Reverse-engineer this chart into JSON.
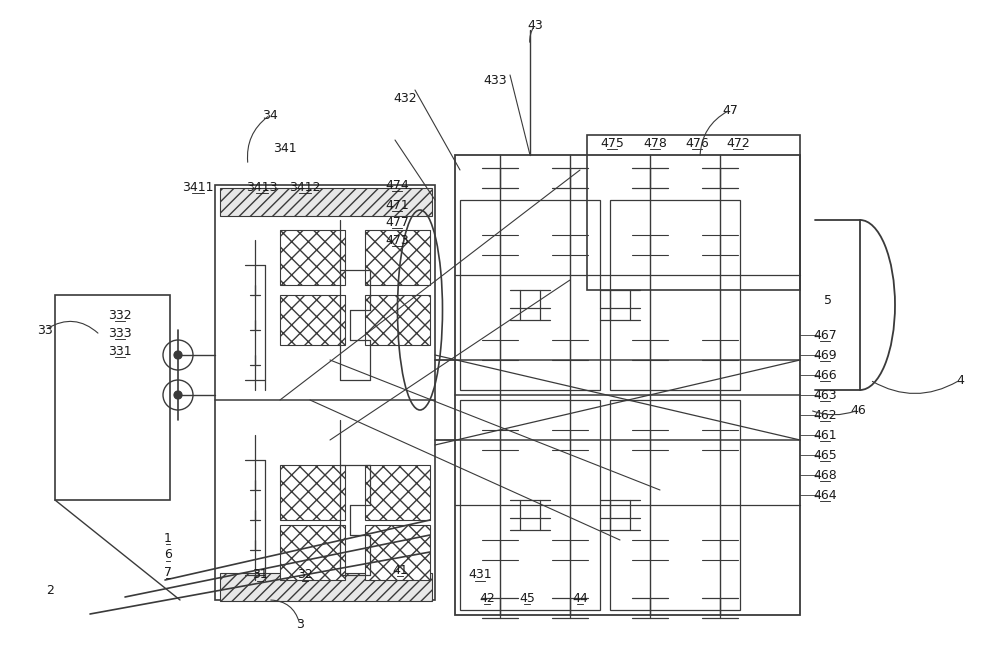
{
  "bg_color": "#ffffff",
  "line_color": "#3a3a3a",
  "label_color": "#1a1a1a",
  "fig_width": 10.0,
  "fig_height": 6.69
}
